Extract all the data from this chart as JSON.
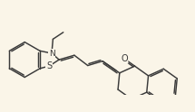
{
  "background_color": "#faf5e8",
  "line_color": "#3a3a3a",
  "line_width": 1.05,
  "figsize": [
    2.15,
    1.24
  ],
  "dpi": 100,
  "N_label": "N",
  "S_label": "S",
  "O_label": "O",
  "font_size": 6.5
}
